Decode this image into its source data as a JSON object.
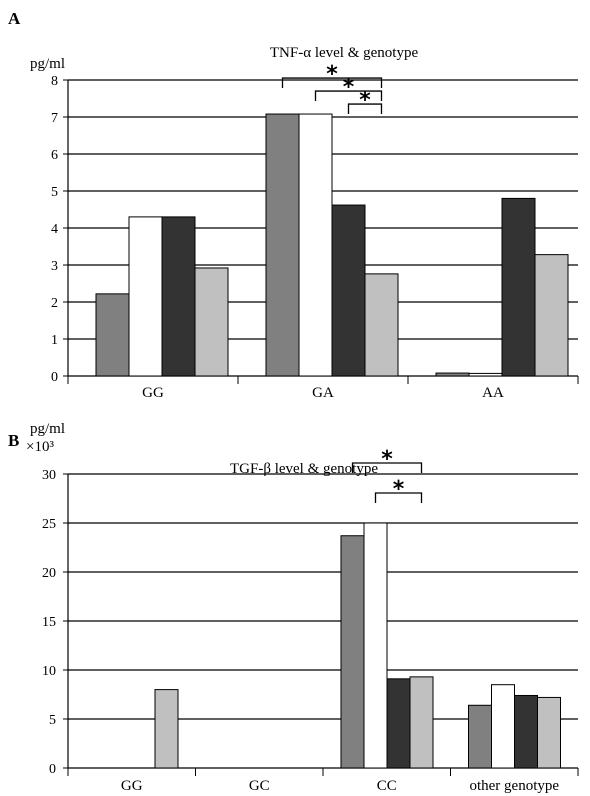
{
  "chart_data": [
    {
      "panel": "A",
      "type": "bar",
      "title": "TNF-α level & genotype",
      "ylabel": "pg/ml",
      "ylabel_sub": "",
      "ylim": [
        0,
        8
      ],
      "yticks": [
        0,
        1,
        2,
        3,
        4,
        5,
        6,
        7,
        8
      ],
      "grid": true,
      "categories": [
        "GG",
        "GA",
        "AA"
      ],
      "series": [
        {
          "color": "#808080",
          "values": [
            2.22,
            7.08,
            0.08
          ]
        },
        {
          "color": "#ffffff",
          "values": [
            4.3,
            7.08,
            0.07
          ]
        },
        {
          "color": "#333333",
          "values": [
            4.3,
            4.62,
            4.8
          ]
        },
        {
          "color": "#c0c0c0",
          "values": [
            2.92,
            2.76,
            3.28
          ]
        }
      ],
      "significance": [
        {
          "category": "GA",
          "from": 0,
          "to": 3,
          "label": "*"
        },
        {
          "category": "GA",
          "from": 1,
          "to": 3,
          "label": "*"
        },
        {
          "category": "GA",
          "from": 2,
          "to": 3,
          "label": "*"
        }
      ]
    },
    {
      "panel": "B",
      "type": "bar",
      "title": "TGF-β level & genotype",
      "ylabel": "pg/ml",
      "ylabel_sub": "×10³",
      "ylim": [
        0,
        30
      ],
      "yticks": [
        0,
        5,
        10,
        15,
        20,
        25,
        30
      ],
      "grid": true,
      "categories": [
        "GG",
        "GC",
        "CC",
        "other genotype"
      ],
      "series": [
        {
          "color": "#808080",
          "values": [
            null,
            null,
            23.7,
            6.4
          ]
        },
        {
          "color": "#ffffff",
          "values": [
            null,
            null,
            25.0,
            8.5
          ]
        },
        {
          "color": "#333333",
          "values": [
            null,
            null,
            9.1,
            7.4
          ]
        },
        {
          "color": "#c0c0c0",
          "values": [
            8.0,
            null,
            9.3,
            7.2
          ]
        }
      ],
      "significance": [
        {
          "category": "CC",
          "from": 0,
          "to": 3,
          "label": "*"
        },
        {
          "category": "CC",
          "from": 1,
          "to": 3,
          "label": "*"
        }
      ]
    }
  ]
}
